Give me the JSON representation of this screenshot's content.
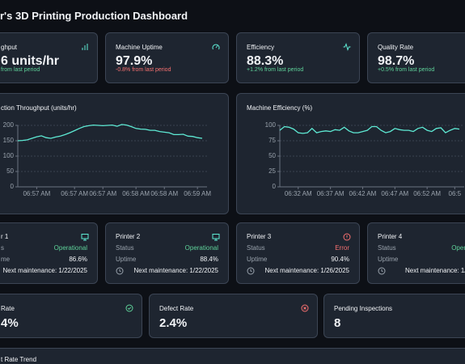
{
  "header": {
    "title": "r's 3D Printing Production Dashboard"
  },
  "kpis": [
    {
      "label": "ghput",
      "value": "6 units/hr",
      "change": "from last period",
      "color": "#5fd39a"
    },
    {
      "label": "Machine Uptime",
      "value": "97.9%",
      "change": "-0.8% from last period",
      "color": "#f87171"
    },
    {
      "label": "Efficiency",
      "value": "88.3%",
      "change": "+1.2% from last period",
      "color": "#5fd39a"
    },
    {
      "label": "Quality Rate",
      "value": "98.7%",
      "change": "+0.5% from last period",
      "color": "#5fd39a"
    }
  ],
  "charts": [
    {
      "type": "line",
      "title": "ction Throughput (units/hr)",
      "color": "#5eead4",
      "grid": true,
      "categories": [
        null,
        null,
        null,
        null,
        "06:57 AM",
        null,
        null,
        null,
        null,
        null,
        null,
        null,
        "06:57 AM",
        null,
        null,
        null,
        null,
        null,
        "06:57 AM",
        null,
        null,
        null,
        null,
        null,
        null,
        "06:58 AM",
        null,
        null,
        null,
        null,
        null,
        "06:58 AM",
        null,
        null,
        null,
        null,
        null,
        null,
        "06:59 AM",
        null
      ],
      "values": [
        150,
        151,
        153,
        158,
        163,
        166,
        160,
        158,
        162,
        165,
        170,
        176,
        183,
        190,
        196,
        199,
        201,
        200,
        199,
        200,
        201,
        197,
        203,
        201,
        196,
        190,
        188,
        187,
        184,
        184,
        180,
        178,
        176,
        170,
        170,
        171,
        165,
        164,
        160,
        158
      ],
      "ylim": [
        0,
        200
      ],
      "yticks": [
        0,
        50,
        100,
        150,
        200
      ]
    },
    {
      "type": "line",
      "title": "Machine Efficiency (%)",
      "color": "#5eead4",
      "grid": true,
      "categories": [
        null,
        null,
        null,
        null,
        "06:32 AM",
        null,
        null,
        null,
        null,
        null,
        null,
        "06:37 AM",
        null,
        null,
        null,
        null,
        null,
        null,
        "06:42 AM",
        null,
        null,
        null,
        null,
        null,
        null,
        "06:47 AM",
        null,
        null,
        null,
        null,
        null,
        null,
        "06:52 AM",
        null,
        null,
        null,
        null,
        null,
        "06:5",
        null
      ],
      "values": [
        92,
        98,
        97,
        94,
        88,
        87,
        88,
        95,
        88,
        90,
        91,
        90,
        93,
        92,
        97,
        91,
        88,
        88,
        90,
        92,
        98,
        98,
        92,
        88,
        90,
        95,
        93,
        92,
        92,
        90,
        95,
        97,
        92,
        90,
        95,
        96,
        88,
        92,
        95,
        94
      ],
      "ylim": [
        0,
        100
      ],
      "yticks": [
        0,
        25,
        50,
        75,
        100
      ]
    }
  ],
  "printers": [
    {
      "name": "r 1",
      "status_label": "s",
      "status": "Operational",
      "uptime_label": "me",
      "uptime": "86.6%",
      "maintenance": "Next maintenance: 1/22/2025",
      "color": "#5fd39a"
    },
    {
      "name": "Printer 2",
      "status_label": "Status",
      "status": "Operational",
      "uptime_label": "Uptime",
      "uptime": "88.4%",
      "maintenance": "Next maintenance: 1/22/2025",
      "color": "#5fd39a"
    },
    {
      "name": "Printer 3",
      "status_label": "Status",
      "status": "Error",
      "uptime_label": "Uptime",
      "uptime": "90.4%",
      "maintenance": "Next maintenance: 1/26/2025",
      "color": "#f87171"
    },
    {
      "name": "Printer 4",
      "status_label": "Status",
      "status": "Oper",
      "uptime_label": "Uptime",
      "uptime": "",
      "maintenance": "Next maintenance: 1/",
      "color": "#5fd39a"
    }
  ],
  "quality": [
    {
      "label": "Rate",
      "value": "4%"
    },
    {
      "label": "Defect Rate",
      "value": "2.4%"
    },
    {
      "label": "Pending Inspections",
      "value": "8"
    }
  ],
  "trend": {
    "title": "t Rate Trend"
  }
}
